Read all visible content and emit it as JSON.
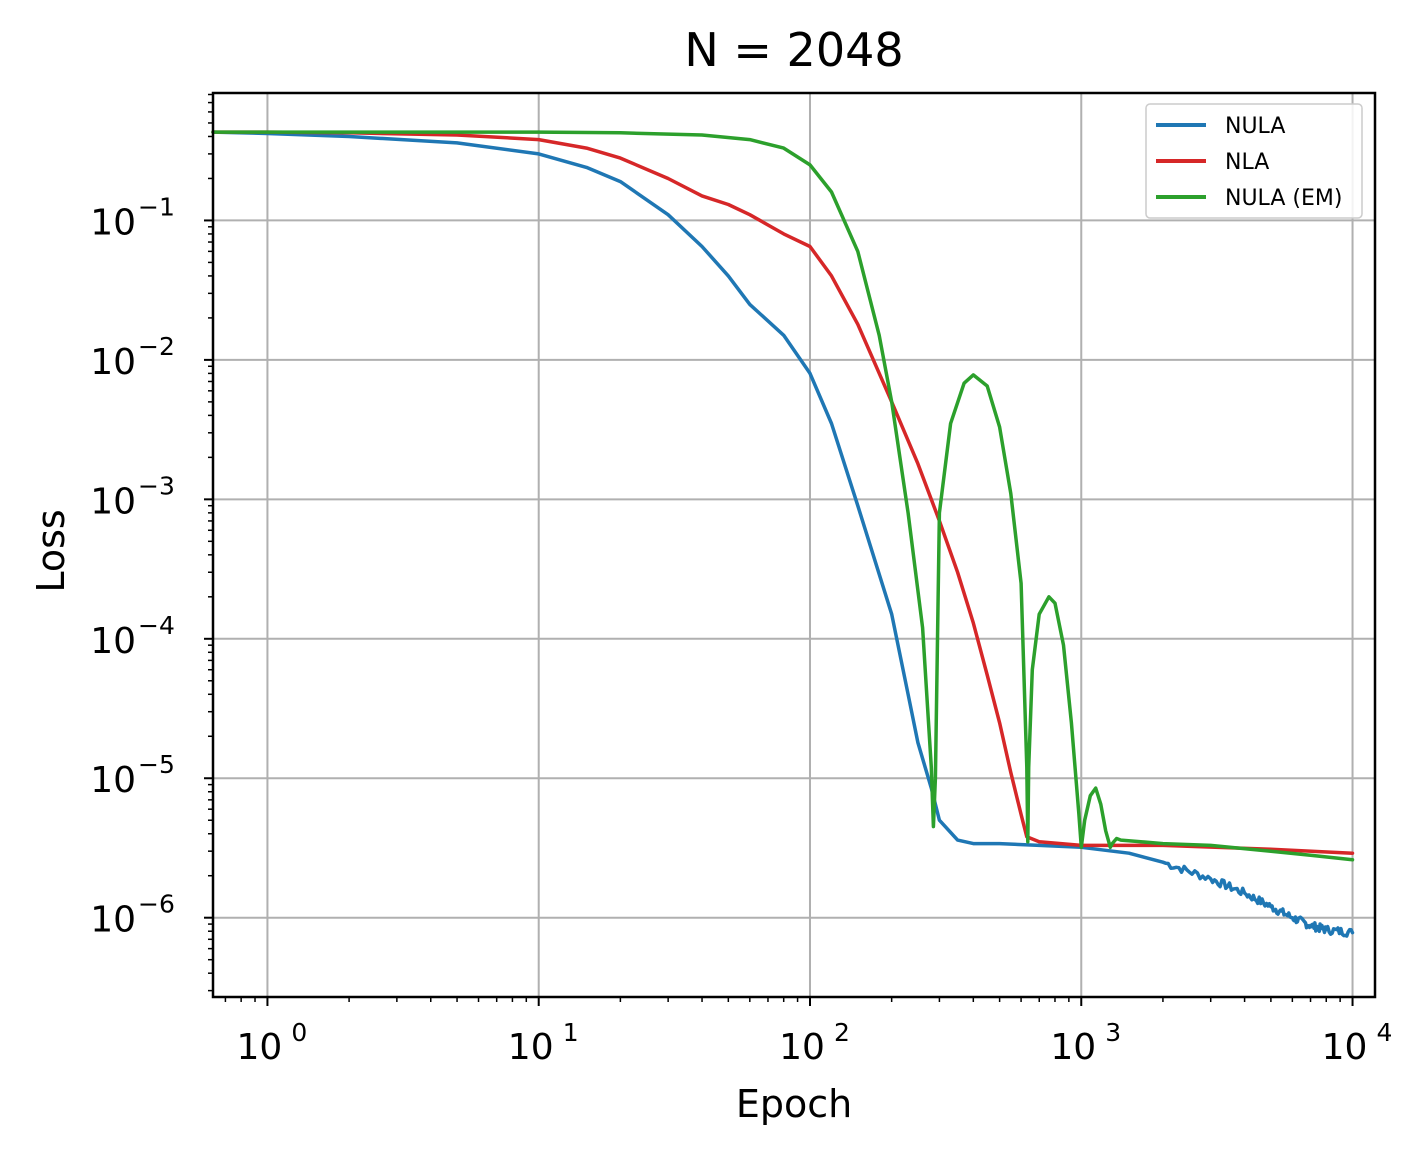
{
  "chart_data": {
    "type": "line",
    "title": "N = 2048",
    "xlabel": "Epoch",
    "ylabel": "Loss",
    "xscale": "log",
    "yscale": "log",
    "xlim": [
      0.63,
      12100
    ],
    "ylim": [
      2.7e-07,
      0.82
    ],
    "grid": true,
    "legend_position": "top-right",
    "x_ticks": [
      {
        "value": 1,
        "base": "10",
        "exp": "0"
      },
      {
        "value": 10,
        "base": "10",
        "exp": "1"
      },
      {
        "value": 100,
        "base": "10",
        "exp": "2"
      },
      {
        "value": 1000,
        "base": "10",
        "exp": "3"
      },
      {
        "value": 10000,
        "base": "10",
        "exp": "4"
      }
    ],
    "y_ticks": [
      {
        "value": 0.1,
        "base": "10",
        "exp": "−1"
      },
      {
        "value": 0.01,
        "base": "10",
        "exp": "−2"
      },
      {
        "value": 0.001,
        "base": "10",
        "exp": "−3"
      },
      {
        "value": 0.0001,
        "base": "10",
        "exp": "−4"
      },
      {
        "value": 1e-05,
        "base": "10",
        "exp": "−5"
      },
      {
        "value": 1e-06,
        "base": "10",
        "exp": "−6"
      }
    ],
    "series": [
      {
        "name": "NULA",
        "color": "#1f77b4",
        "noisy_after": 2000,
        "x": [
          0.63,
          1,
          2,
          5,
          10,
          15,
          20,
          30,
          40,
          50,
          60,
          80,
          100,
          120,
          150,
          200,
          230,
          250,
          280,
          300,
          350,
          400,
          500,
          700,
          1000,
          1500,
          2000,
          3000,
          4000,
          5000,
          6000,
          7000,
          8000,
          10000
        ],
        "y": [
          0.43,
          0.42,
          0.4,
          0.36,
          0.3,
          0.24,
          0.19,
          0.11,
          0.065,
          0.04,
          0.025,
          0.015,
          0.008,
          0.0035,
          0.0009,
          0.00015,
          4e-05,
          1.8e-05,
          8.5e-06,
          5e-06,
          3.6e-06,
          3.4e-06,
          3.4e-06,
          3.3e-06,
          3.2e-06,
          2.9e-06,
          2.5e-06,
          1.9e-06,
          1.5e-06,
          1.2e-06,
          1e-06,
          8.8e-07,
          8.2e-07,
          7.8e-07
        ]
      },
      {
        "name": "NLA",
        "color": "#d62728",
        "x": [
          0.63,
          1,
          2,
          5,
          10,
          15,
          20,
          30,
          40,
          50,
          60,
          80,
          100,
          120,
          150,
          200,
          250,
          300,
          350,
          400,
          450,
          500,
          550,
          600,
          630,
          700,
          1000,
          2000,
          5000,
          10000
        ],
        "y": [
          0.43,
          0.43,
          0.425,
          0.41,
          0.38,
          0.33,
          0.28,
          0.2,
          0.15,
          0.13,
          0.11,
          0.08,
          0.065,
          0.04,
          0.018,
          0.005,
          0.0018,
          0.0007,
          0.0003,
          0.00013,
          5.5e-05,
          2.5e-05,
          1.1e-05,
          5.5e-06,
          3.8e-06,
          3.5e-06,
          3.3e-06,
          3.3e-06,
          3.1e-06,
          2.9e-06
        ]
      },
      {
        "name": "NULA (EM)",
        "color": "#2ca02c",
        "x": [
          0.63,
          1,
          5,
          10,
          20,
          40,
          60,
          80,
          100,
          120,
          150,
          180,
          200,
          230,
          260,
          280,
          285,
          290,
          300,
          330,
          370,
          400,
          450,
          500,
          550,
          600,
          630,
          635,
          640,
          660,
          700,
          760,
          800,
          860,
          920,
          980,
          1000,
          1030,
          1080,
          1130,
          1180,
          1230,
          1280,
          1300,
          1350,
          1400,
          2000,
          3000,
          5000,
          7000,
          10000
        ],
        "y": [
          0.43,
          0.43,
          0.43,
          0.43,
          0.425,
          0.41,
          0.38,
          0.33,
          0.25,
          0.16,
          0.06,
          0.015,
          0.005,
          0.0008,
          0.00012,
          1.2e-05,
          4.5e-06,
          1e-05,
          0.0008,
          0.0035,
          0.0068,
          0.0078,
          0.0065,
          0.0033,
          0.0011,
          0.00025,
          1.2e-05,
          3.5e-06,
          1.2e-05,
          6e-05,
          0.00015,
          0.0002,
          0.00018,
          9e-05,
          2.5e-05,
          5.5e-06,
          3.2e-06,
          5e-06,
          7.5e-06,
          8.5e-06,
          6.5e-06,
          4.2e-06,
          3.2e-06,
          3.4e-06,
          3.7e-06,
          3.6e-06,
          3.4e-06,
          3.3e-06,
          3e-06,
          2.8e-06,
          2.6e-06
        ]
      }
    ]
  }
}
